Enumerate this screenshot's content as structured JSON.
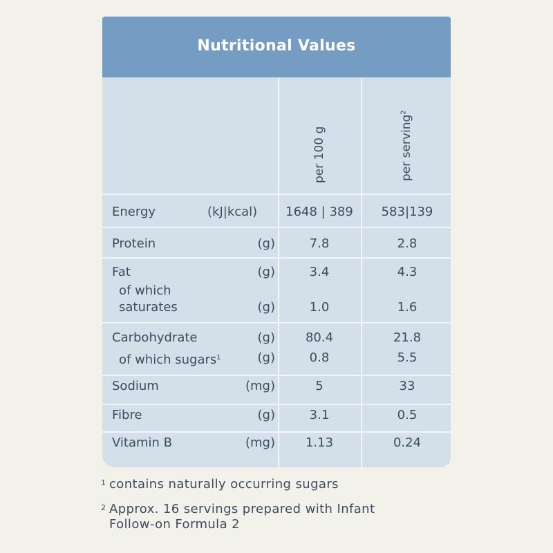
{
  "title": "Nutritional Values",
  "columns": {
    "per100": "per 100 g",
    "perServing": "per serving",
    "perServingMark": "2"
  },
  "rows": [
    {
      "label": "Energy",
      "unit": "(kJ|kcal)",
      "per100": "1648 | 389",
      "perServing": "583|139"
    },
    {
      "label": "Protein",
      "unit": "(g)",
      "per100": "7.8",
      "perServing": "2.8"
    },
    {
      "label": "Fat",
      "unit": "(g)",
      "per100": "3.4",
      "perServing": "4.3"
    },
    {
      "label_line1": "of which",
      "label_line2": "saturates",
      "unit": "(g)",
      "per100": "1.0",
      "perServing": "1.6"
    },
    {
      "label": "Carbohydrate",
      "unit": "(g)",
      "per100": "80.4",
      "perServing": "21.8"
    },
    {
      "label": "of which sugars",
      "mark": "1",
      "unit": "(g)",
      "per100": "0.8",
      "perServing": "5.5"
    },
    {
      "label": "Sodium",
      "unit": "(mg)",
      "per100": "5",
      "perServing": "33"
    },
    {
      "label": "Fibre",
      "unit": "(g)",
      "per100": "3.1",
      "perServing": "0.5"
    },
    {
      "label": "Vitamin B",
      "unit": "(mg)",
      "per100": "1.13",
      "perServing": "0.24"
    }
  ],
  "footnotes": [
    {
      "mark": "1",
      "text": "contains naturally occurring sugars"
    },
    {
      "mark": "2",
      "text_line1": "Approx. 16 servings prepared with Infant",
      "text_line2": "Follow-on Formula 2"
    }
  ]
}
